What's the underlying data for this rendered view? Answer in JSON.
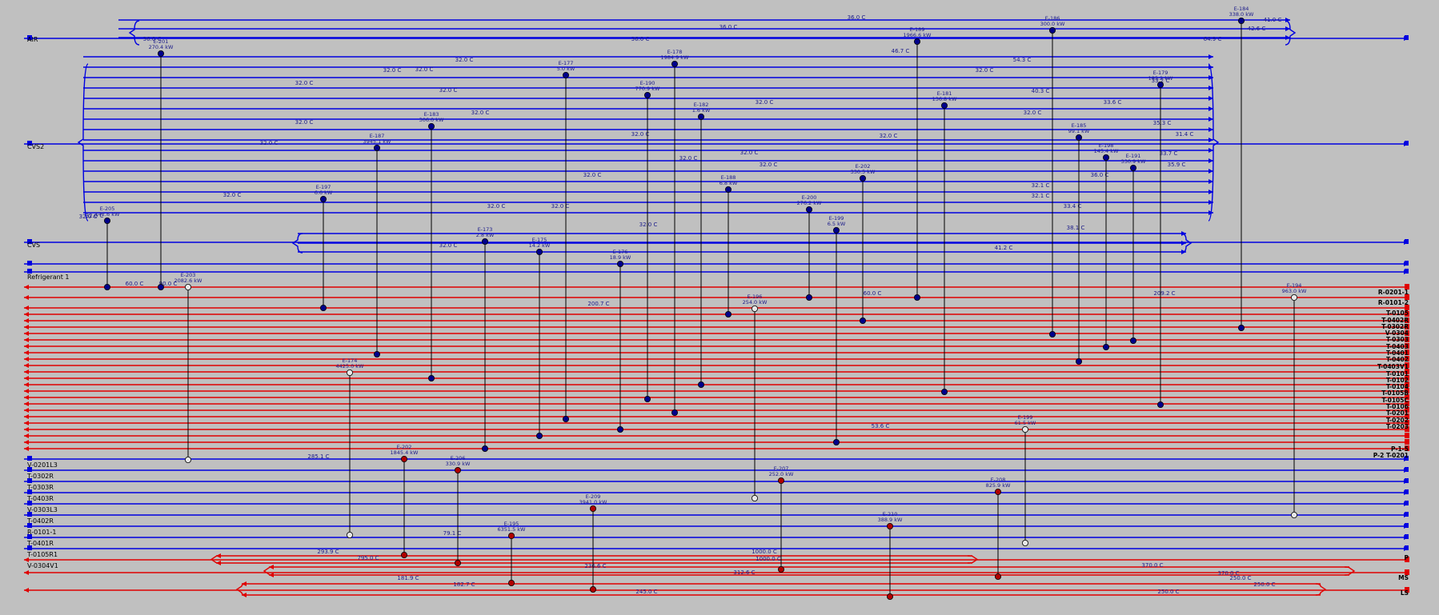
{
  "colors": {
    "cold": "#0000e0",
    "hot": "#e00000",
    "exchanger_cold": "#00008b",
    "exchanger_hot": "#b00000",
    "exchanger_util": "#e8e8e8",
    "label": "#000000",
    "temp_text": "#1a1a8a"
  },
  "stream_labels": [
    {
      "text": "AIR",
      "row": 1
    },
    {
      "text": "CVS2",
      "row": 2
    },
    {
      "text": "CVS",
      "row": 3
    },
    {
      "text": "Refrigerant 1",
      "row": 4
    },
    {
      "text": "V-0201L3",
      "row": 5
    },
    {
      "text": "T-0302R",
      "row": 6
    },
    {
      "text": "T-0303R",
      "row": 7
    },
    {
      "text": "T-0403R",
      "row": 8
    },
    {
      "text": "V-0303L3",
      "row": 9
    },
    {
      "text": "T-0402R",
      "row": 10
    },
    {
      "text": "R-0101-1",
      "row": 11
    },
    {
      "text": "T-0401R",
      "row": 12
    },
    {
      "text": "T-0105R1",
      "row": 13
    },
    {
      "text": "V-0304V1",
      "row": 14
    }
  ],
  "right_labels": [
    "R-0201-1",
    "R-0101-2",
    "T-0105",
    "T-0402R",
    "T-0302R",
    "V-0304",
    "T-0303",
    "T-0403",
    "T-0401",
    "T-0402",
    "T-0403V1",
    "T-0101",
    "T-0102",
    "T-0104",
    "T-0105B",
    "T-0105C",
    "T-0106",
    "T-0201",
    "T-0202",
    "T-0203",
    "P-1-5",
    "P-2 T-0201",
    "P",
    "MS",
    "LS"
  ],
  "exchangers": [
    {
      "name": "E-201",
      "duty": "270.4 kW"
    },
    {
      "name": "E-205",
      "duty": "142.6 kW"
    },
    {
      "name": "E-203",
      "duty": "2082.6 kW"
    },
    {
      "name": "E-197",
      "duty": "6.6 kW"
    },
    {
      "name": "E-187",
      "duty": "3945.1 kW"
    },
    {
      "name": "E-183",
      "duty": "306.0 kW"
    },
    {
      "name": "E-177",
      "duty": "5.0 kW"
    },
    {
      "name": "E-178",
      "duty": "1984.9 kW"
    },
    {
      "name": "E-190",
      "duty": "770.9 kW"
    },
    {
      "name": "E-182",
      "duty": "1.6 kW"
    },
    {
      "name": "E-173",
      "duty": "2.8 kW"
    },
    {
      "name": "E-175",
      "duty": "14.2 kW"
    },
    {
      "name": "E-176",
      "duty": "18.9 kW"
    },
    {
      "name": "E-188",
      "duty": "6.8 kW"
    },
    {
      "name": "E-200",
      "duty": "276.2 kW"
    },
    {
      "name": "E-202",
      "duty": "330.5 kW"
    },
    {
      "name": "E-199",
      "duty": "6.5 kW"
    },
    {
      "name": "E-189",
      "duty": "1966.6 kW"
    },
    {
      "name": "E-181",
      "duty": "136.8 kW"
    },
    {
      "name": "E-186",
      "duty": "300.0 kW"
    },
    {
      "name": "E-184",
      "duty": "338.0 kW"
    },
    {
      "name": "E-179",
      "duty": "183.2 kW"
    },
    {
      "name": "E-185",
      "duty": "99.1 kW"
    },
    {
      "name": "E-198",
      "duty": "145.4 kW"
    },
    {
      "name": "E-191",
      "duty": "330.9 kW"
    },
    {
      "name": "E-174",
      "duty": "4425.0 kW"
    },
    {
      "name": "E-202",
      "duty": "1845.4 kW"
    },
    {
      "name": "E-206",
      "duty": "330.9 kW"
    },
    {
      "name": "E-195",
      "duty": "6351.5 kW"
    },
    {
      "name": "E-209",
      "duty": "3941.0 kW"
    },
    {
      "name": "E-207",
      "duty": "252.0 kW"
    },
    {
      "name": "E-210",
      "duty": "388.9 kW"
    },
    {
      "name": "E-208",
      "duty": "825.9 kW"
    },
    {
      "name": "E-196",
      "duty": "254.0 kW"
    },
    {
      "name": "E-199",
      "duty": "61.5 kW"
    },
    {
      "name": "E-194",
      "duty": "963.0 kW"
    }
  ],
  "temperatures": [
    "36.0 C",
    "36.0 C",
    "36.0 C",
    "36.0 C",
    "46.7 C",
    "64.9 C",
    "42.6 C",
    "41.0 C",
    "32.0 C",
    "32.0 C",
    "32.0 C",
    "32.0 C",
    "32.0 C",
    "32.0 C",
    "32.0 C",
    "32.0 C",
    "32.0 C",
    "32.0 C",
    "32.0 C",
    "32.0 C",
    "32.0 C",
    "32.0 C",
    "32.0 C",
    "32.0 C",
    "54.3 C",
    "32.0 C",
    "40.3 C",
    "33.6 C",
    "33.2 C",
    "32.0 C",
    "31.4 C",
    "35.3 C",
    "33.7 C",
    "35.9 C",
    "36.0 C",
    "32.1 C",
    "32.1 C",
    "33.4 C",
    "38.1 C",
    "41.2 C",
    "60.0 C",
    "90.0 C",
    "200.7 C",
    "60.0 C",
    "209.2 C",
    "53.6 C",
    "285.1 C",
    "293.9 C",
    "79.1 C",
    "795.0 C",
    "1000.0 C",
    "1000.0 C",
    "370.0 C",
    "370.0 C",
    "181.9 C",
    "236.6 C",
    "312.6 C",
    "250.0 C",
    "182.7 C",
    "245.0 C",
    "250.0 C",
    "250.0 C",
    "32.0 C",
    "32.0 C",
    "32.0 C",
    "32.0 C",
    "32.0 C",
    "32.0 C"
  ]
}
